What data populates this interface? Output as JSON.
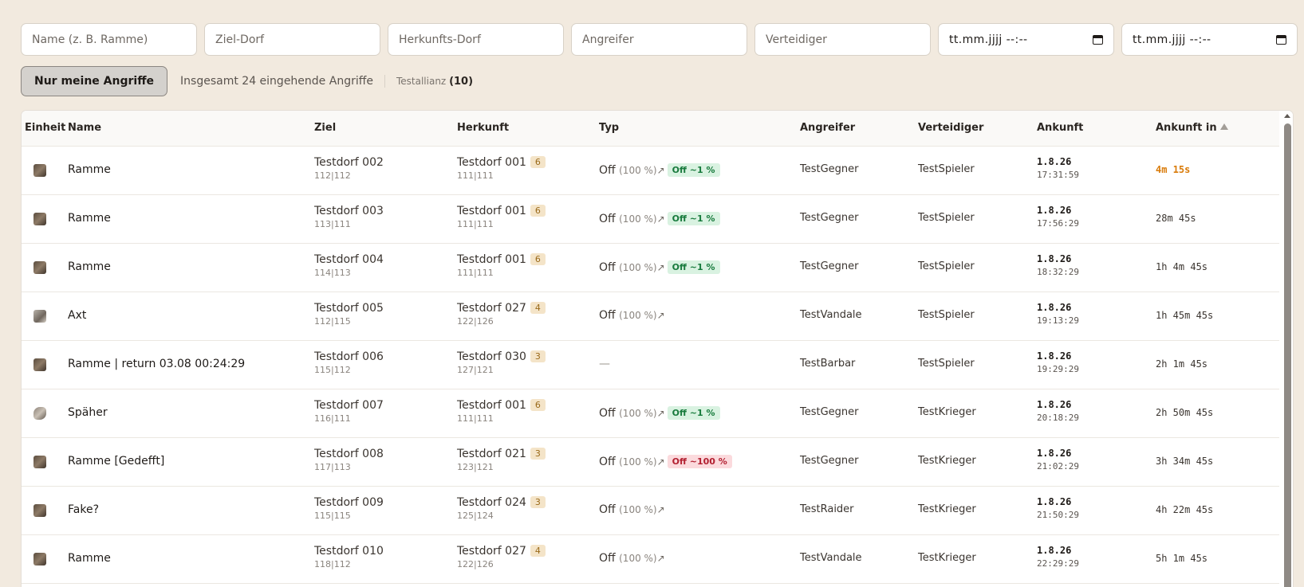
{
  "filters": {
    "name_placeholder": "Name (z. B. Ramme)",
    "target_placeholder": "Ziel-Dorf",
    "origin_placeholder": "Herkunfts-Dorf",
    "attacker_placeholder": "Angreifer",
    "defender_placeholder": "Verteidiger",
    "date_from": "tt.mm.jjjj --:--",
    "date_to": "tt.mm.jjjj --:--"
  },
  "toolbar": {
    "mine_button": "Nur meine Angriffe",
    "total_text": "Insgesamt 24 eingehende Angriffe",
    "ally_name": "Testallianz",
    "ally_count": "(10)"
  },
  "table": {
    "headers": {
      "unit": "Einheit",
      "name": "Name",
      "target": "Ziel",
      "origin": "Herkunft",
      "type": "Typ",
      "attacker": "Angreifer",
      "defender": "Verteidiger",
      "arrival": "Ankunft",
      "arrival_in": "Ankunft in"
    },
    "rows": [
      {
        "unit": "ram-icon",
        "name": "Ramme",
        "target": "Testdorf 002",
        "target_coords": "112|112",
        "origin": "Testdorf 001",
        "origin_coords": "111|111",
        "points": "6",
        "type": "Off",
        "type_pct": "(100 %)",
        "arrow": "↗",
        "tag": "Off ~1 %",
        "tag_color": "green",
        "attacker": "TestGegner",
        "defender": "TestSpieler",
        "date": "1.8.26",
        "time": "17:31:59",
        "in": "4m 15s",
        "warn": true
      },
      {
        "unit": "ram-icon",
        "name": "Ramme",
        "target": "Testdorf 003",
        "target_coords": "113|111",
        "origin": "Testdorf 001",
        "origin_coords": "111|111",
        "points": "6",
        "type": "Off",
        "type_pct": "(100 %)",
        "arrow": "↗",
        "tag": "Off ~1 %",
        "tag_color": "green",
        "attacker": "TestGegner",
        "defender": "TestSpieler",
        "date": "1.8.26",
        "time": "17:56:29",
        "in": "28m 45s",
        "warn": false
      },
      {
        "unit": "ram-icon",
        "name": "Ramme",
        "target": "Testdorf 004",
        "target_coords": "114|113",
        "origin": "Testdorf 001",
        "origin_coords": "111|111",
        "points": "6",
        "type": "Off",
        "type_pct": "(100 %)",
        "arrow": "↗",
        "tag": "Off ~1 %",
        "tag_color": "green",
        "attacker": "TestGegner",
        "defender": "TestSpieler",
        "date": "1.8.26",
        "time": "18:32:29",
        "in": "1h 4m 45s",
        "warn": false
      },
      {
        "unit": "axe-icon",
        "name": "Axt",
        "target": "Testdorf 005",
        "target_coords": "112|115",
        "origin": "Testdorf 027",
        "origin_coords": "122|126",
        "points": "4",
        "type": "Off",
        "type_pct": "(100 %)",
        "arrow": "↗",
        "tag": "",
        "tag_color": "",
        "attacker": "TestVandale",
        "defender": "TestSpieler",
        "date": "1.8.26",
        "time": "19:13:29",
        "in": "1h 45m 45s",
        "warn": false
      },
      {
        "unit": "ram-icon",
        "name": "Ramme | return 03.08 00:24:29",
        "target": "Testdorf 006",
        "target_coords": "115|112",
        "origin": "Testdorf 030",
        "origin_coords": "127|121",
        "points": "3",
        "type": "",
        "type_pct": "",
        "arrow": "",
        "tag": "",
        "tag_color": "",
        "dash": "—",
        "attacker": "TestBarbar",
        "defender": "TestSpieler",
        "date": "1.8.26",
        "time": "19:29:29",
        "in": "2h 1m 45s",
        "warn": false
      },
      {
        "unit": "spy-icon",
        "name": "Späher",
        "target": "Testdorf 007",
        "target_coords": "116|111",
        "origin": "Testdorf 001",
        "origin_coords": "111|111",
        "points": "6",
        "type": "Off",
        "type_pct": "(100 %)",
        "arrow": "↗",
        "tag": "Off ~1 %",
        "tag_color": "green",
        "attacker": "TestGegner",
        "defender": "TestKrieger",
        "date": "1.8.26",
        "time": "20:18:29",
        "in": "2h 50m 45s",
        "warn": false
      },
      {
        "unit": "ram-icon",
        "name": "Ramme [Gedefft]",
        "target": "Testdorf 008",
        "target_coords": "117|113",
        "origin": "Testdorf 021",
        "origin_coords": "123|121",
        "points": "3",
        "type": "Off",
        "type_pct": "(100 %)",
        "arrow": "↗",
        "tag": "Off ~100 %",
        "tag_color": "red",
        "attacker": "TestGegner",
        "defender": "TestKrieger",
        "date": "1.8.26",
        "time": "21:02:29",
        "in": "3h 34m 45s",
        "warn": false
      },
      {
        "unit": "ram-icon",
        "name": "Fake?",
        "target": "Testdorf 009",
        "target_coords": "115|115",
        "origin": "Testdorf 024",
        "origin_coords": "125|124",
        "points": "3",
        "type": "Off",
        "type_pct": "(100 %)",
        "arrow": "↗",
        "tag": "",
        "tag_color": "",
        "attacker": "TestRaider",
        "defender": "TestKrieger",
        "date": "1.8.26",
        "time": "21:50:29",
        "in": "4h 22m 45s",
        "warn": false
      },
      {
        "unit": "ram-icon",
        "name": "Ramme",
        "target": "Testdorf 010",
        "target_coords": "118|112",
        "origin": "Testdorf 027",
        "origin_coords": "122|126",
        "points": "4",
        "type": "Off",
        "type_pct": "(100 %)",
        "arrow": "↗",
        "tag": "",
        "tag_color": "",
        "attacker": "TestVandale",
        "defender": "TestKrieger",
        "date": "1.8.26",
        "time": "22:29:29",
        "in": "5h 1m 45s",
        "warn": false
      }
    ]
  }
}
